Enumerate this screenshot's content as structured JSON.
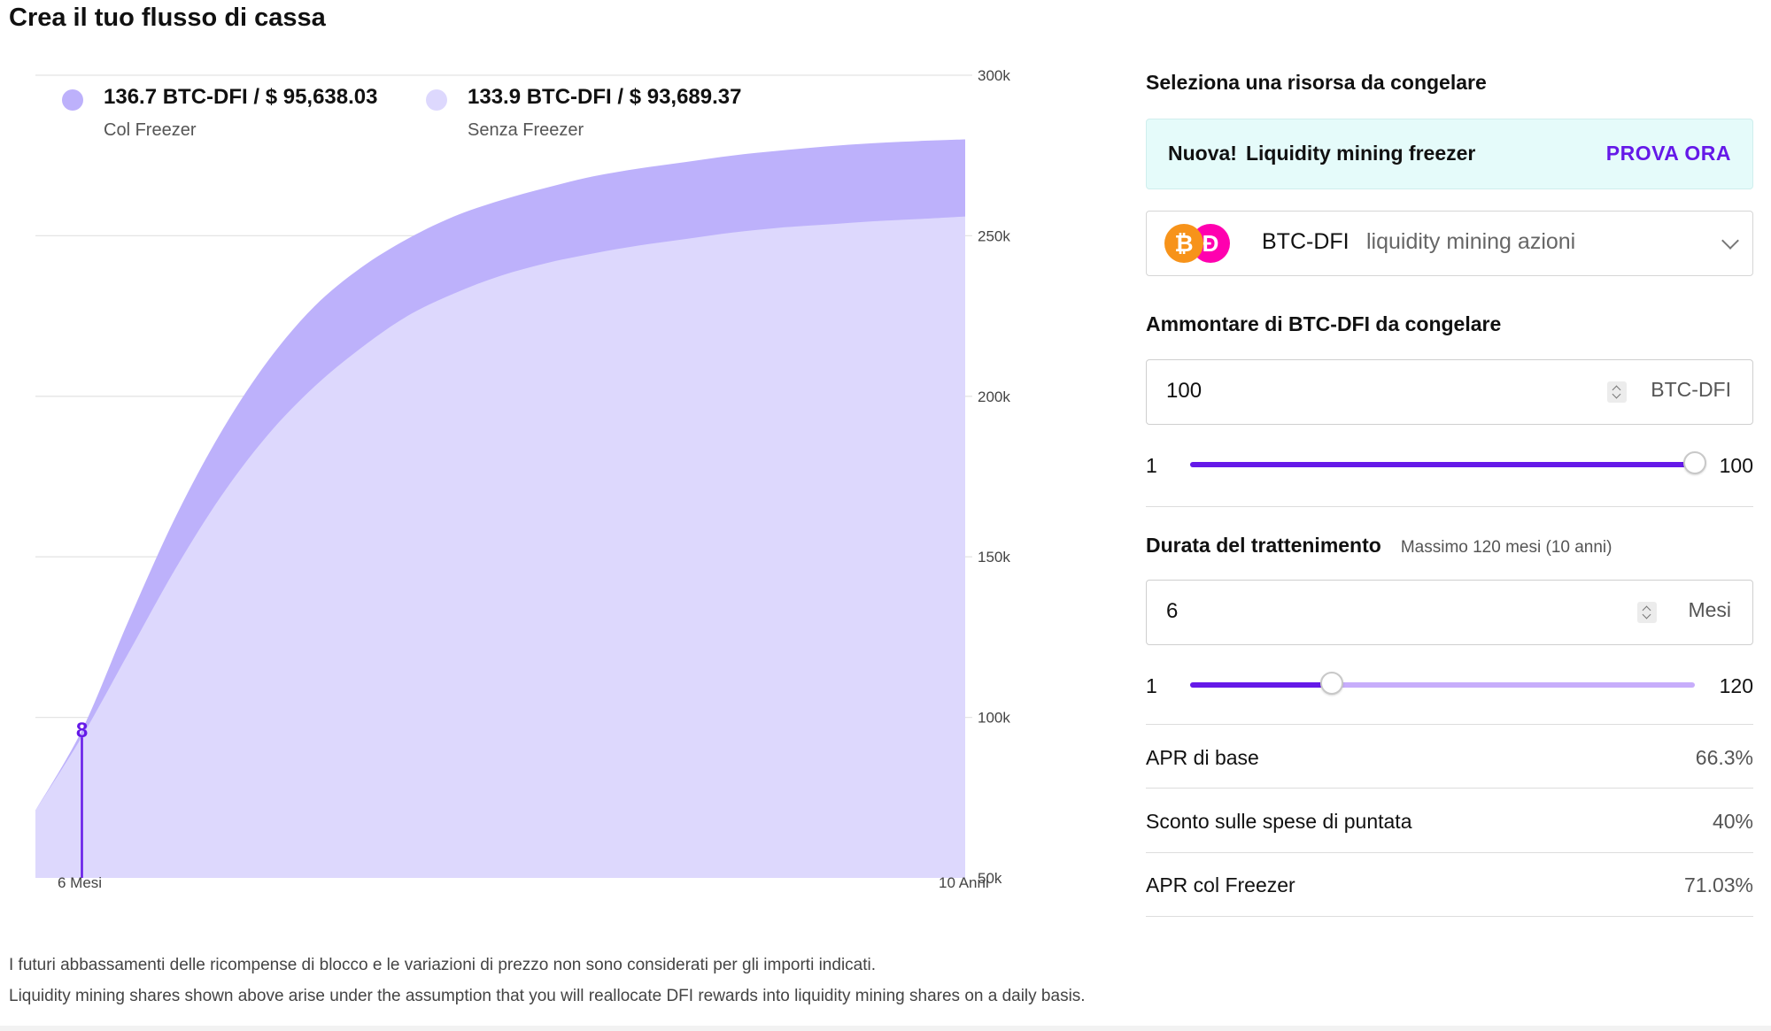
{
  "page": {
    "title": "Crea il tuo flusso di cassa"
  },
  "legend": [
    {
      "value": "136.7 BTC-DFI / $ 95,638.03",
      "label": "Col Freezer",
      "color": "#bdb1fb"
    },
    {
      "value": "133.9 BTC-DFI / $ 93,689.37",
      "label": "Senza Freezer",
      "color": "#ddd8fd"
    }
  ],
  "chart_data": {
    "type": "area",
    "x_start_label": "6 Mesi",
    "x_end_label": "10 Anni",
    "x_range_months": [
      6,
      120
    ],
    "yticks": [
      "300k",
      "250k",
      "200k",
      "150k",
      "100k",
      "50k"
    ],
    "ytick_values": [
      300000,
      250000,
      200000,
      150000,
      100000,
      50000
    ],
    "ylim": [
      50000,
      300000
    ],
    "marker_label": "8",
    "marker_x_month": 6,
    "grid": true,
    "legend_position": "top-left",
    "series": [
      {
        "name": "Col Freezer",
        "color": "#bdb1fb",
        "x": [
          0,
          6,
          12,
          18,
          24,
          30,
          36,
          42,
          48,
          54,
          60,
          66,
          72,
          78,
          84,
          90,
          96,
          102,
          108,
          114,
          120
        ],
        "y": [
          71000,
          96000,
          130000,
          162000,
          189000,
          211000,
          228000,
          240000,
          249000,
          256000,
          261000,
          265000,
          268500,
          271000,
          273000,
          275000,
          276500,
          277800,
          278800,
          279500,
          280000
        ]
      },
      {
        "name": "Senza Freezer",
        "color": "#ddd8fd",
        "x": [
          0,
          6,
          12,
          18,
          24,
          30,
          36,
          42,
          48,
          54,
          60,
          66,
          72,
          78,
          84,
          90,
          96,
          102,
          108,
          114,
          120
        ],
        "y": [
          71000,
          94000,
          120000,
          146000,
          169000,
          188000,
          203000,
          215000,
          225000,
          232000,
          237500,
          241500,
          244500,
          247000,
          249000,
          251000,
          252500,
          253500,
          254500,
          255200,
          256000
        ]
      }
    ]
  },
  "panel": {
    "asset_label": "Seleziona una risorsa da congelare",
    "banner": {
      "tag": "Nuova!",
      "text": "Liquidity mining freezer",
      "cta": "PROVA ORA"
    },
    "asset_select": {
      "token": "BTC-DFI",
      "type": "liquidity mining azioni",
      "icons": [
        "bitcoin-icon",
        "defichain-icon"
      ]
    },
    "amount": {
      "label": "Ammontare di BTC-DFI da congelare",
      "value": "100",
      "unit": "BTC-DFI",
      "min": "1",
      "max": "100",
      "fraction": 1.0
    },
    "duration": {
      "label": "Durata del trattenimento",
      "hint": "Massimo 120 mesi (10 anni)",
      "value": "6",
      "unit": "Mesi",
      "min": "1",
      "max": "120",
      "fraction": 0.28
    },
    "stats": [
      {
        "label": "APR di base",
        "value": "66.3%"
      },
      {
        "label": "Sconto sulle spese di puntata",
        "value": "40%"
      },
      {
        "label": "APR col Freezer",
        "value": "71.03%"
      }
    ],
    "accent_color": "#6519e8",
    "banner_color": "#e5fbfa"
  },
  "footer": {
    "note1": "I futuri abbassamenti delle ricompense di blocco e le variazioni di prezzo non sono considerati per gli importi indicati.",
    "note2": "Liquidity mining shares shown above arise under the assumption that you will reallocate DFI rewards into liquidity mining shares on a daily basis."
  }
}
